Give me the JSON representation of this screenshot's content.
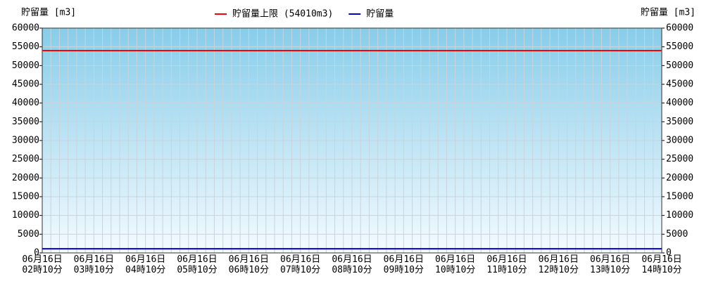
{
  "chart_data": {
    "type": "line",
    "y_label": "貯留量 [m3]",
    "y2_label": "貯留量 [m3]",
    "categories": [
      "06月16日\n02時10分",
      "06月16日\n03時10分",
      "06月16日\n04時10分",
      "06月16日\n05時10分",
      "06月16日\n06時10分",
      "06月16日\n07時10分",
      "06月16日\n08時10分",
      "06月16日\n09時10分",
      "06月16日\n10時10分",
      "06月16日\n11時10分",
      "06月16日\n12時10分",
      "06月16日\n13時10分",
      "06月16日\n14時10分"
    ],
    "series": [
      {
        "name": "貯留量上限 (54010m3)",
        "color": "#ff0000",
        "values": [
          54010,
          54010,
          54010,
          54010,
          54010,
          54010,
          54010,
          54010,
          54010,
          54010,
          54010,
          54010,
          54010
        ]
      },
      {
        "name": "貯留量",
        "color": "#0000cc",
        "values": [
          1100,
          1100,
          1100,
          1100,
          1100,
          1100,
          1100,
          1100,
          1100,
          1100,
          1100,
          1100,
          1100
        ]
      }
    ],
    "ylim": [
      0,
      60000
    ],
    "yticks": [
      0,
      5000,
      10000,
      15000,
      20000,
      25000,
      30000,
      35000,
      40000,
      45000,
      50000,
      55000,
      60000
    ],
    "y2lim": [
      0,
      60000
    ],
    "y2ticks": [
      0,
      5000,
      10000,
      15000,
      20000,
      25000,
      30000,
      35000,
      40000,
      45000,
      50000,
      55000,
      60000
    ],
    "grid": true
  }
}
